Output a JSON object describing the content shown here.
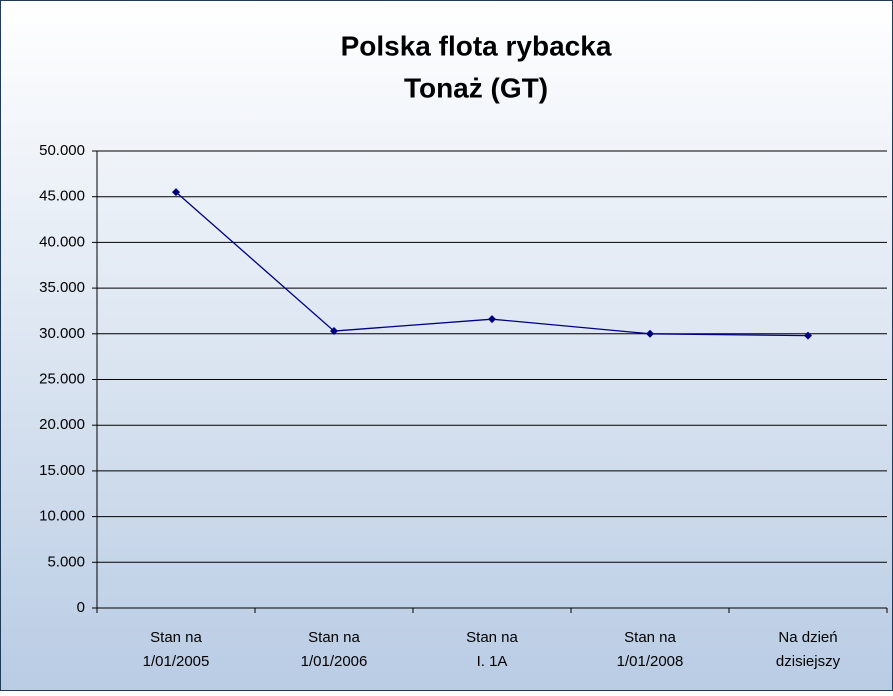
{
  "chart_data": {
    "type": "line",
    "title": [
      "Polska flota rybacka",
      "Tonaż (GT)"
    ],
    "categories": [
      [
        "Stan na",
        "1/01/2005"
      ],
      [
        "Stan na",
        "1/01/2006"
      ],
      [
        "Stan na",
        "I.   1A"
      ],
      [
        "Stan na",
        "1/01/2008"
      ],
      [
        "Na dzień",
        "dzisiejszy"
      ]
    ],
    "series": [
      {
        "color": "#000080",
        "values": [
          45500,
          30300,
          31600,
          30000,
          29800
        ]
      }
    ],
    "ylim": [
      0,
      50000
    ],
    "yticks": [
      0,
      {
        "value": 5000,
        "label": "5.000"
      },
      {
        "value": 10000,
        "label": "10.000"
      },
      {
        "value": 15000,
        "label": "15.000"
      },
      {
        "value": 20000,
        "label": "20.000"
      },
      {
        "value": 25000,
        "label": "25.000"
      },
      {
        "value": 30000,
        "label": "30.000"
      },
      {
        "value": 35000,
        "label": "35.000"
      },
      {
        "value": 40000,
        "label": "40.000"
      },
      {
        "value": 45000,
        "label": "45.000"
      },
      {
        "value": 50000,
        "label": "50.000"
      }
    ],
    "grid": true
  }
}
